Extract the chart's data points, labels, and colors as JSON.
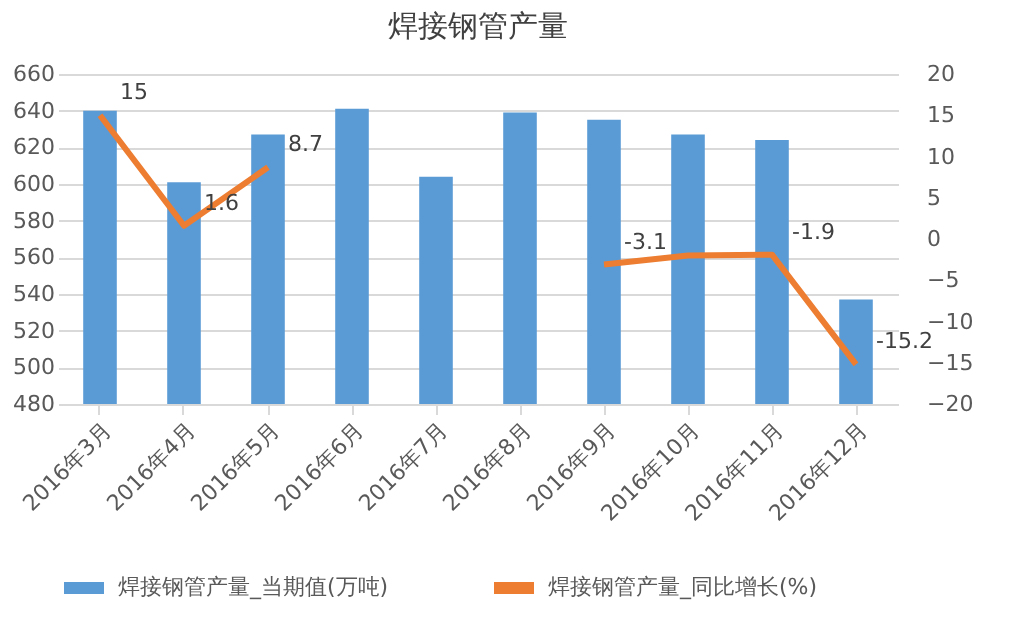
{
  "chart_data": {
    "type": "bar",
    "title": "焊接钢管产量",
    "categories": [
      "2016年3月",
      "2016年4月",
      "2016年5月",
      "2016年6月",
      "2016年7月",
      "2016年8月",
      "2016年9月",
      "2016年10月",
      "2016年11月",
      "2016年12月"
    ],
    "series": [
      {
        "name": "焊接钢管产量_当期值(万吨)",
        "color": "#5b9bd5",
        "values": [
          640,
          601,
          627,
          641,
          604,
          639,
          635,
          627,
          624,
          537
        ]
      },
      {
        "name": "焊接钢管产量_同比增长(%)",
        "type": "line",
        "axis": "y2",
        "color": "#ed7d31",
        "values": [
          15,
          1.6,
          8.7,
          null,
          null,
          null,
          -3.1,
          -2,
          -1.9,
          -15.2
        ],
        "value_labels": [
          "15",
          "1.6",
          "8.7",
          null,
          null,
          null,
          "-3.1",
          null,
          "-1.9",
          "-15.2"
        ]
      }
    ],
    "ylim": [
      480,
      660
    ],
    "yticks": [
      480,
      500,
      520,
      540,
      560,
      580,
      600,
      620,
      640,
      660
    ],
    "y2lim": [
      -20,
      20
    ],
    "y2ticks": [
      -20,
      -15,
      -10,
      -5,
      0,
      5,
      10,
      15,
      20
    ],
    "grid": "y",
    "legend": "bottom",
    "marker": "none",
    "line_style": "solid"
  }
}
